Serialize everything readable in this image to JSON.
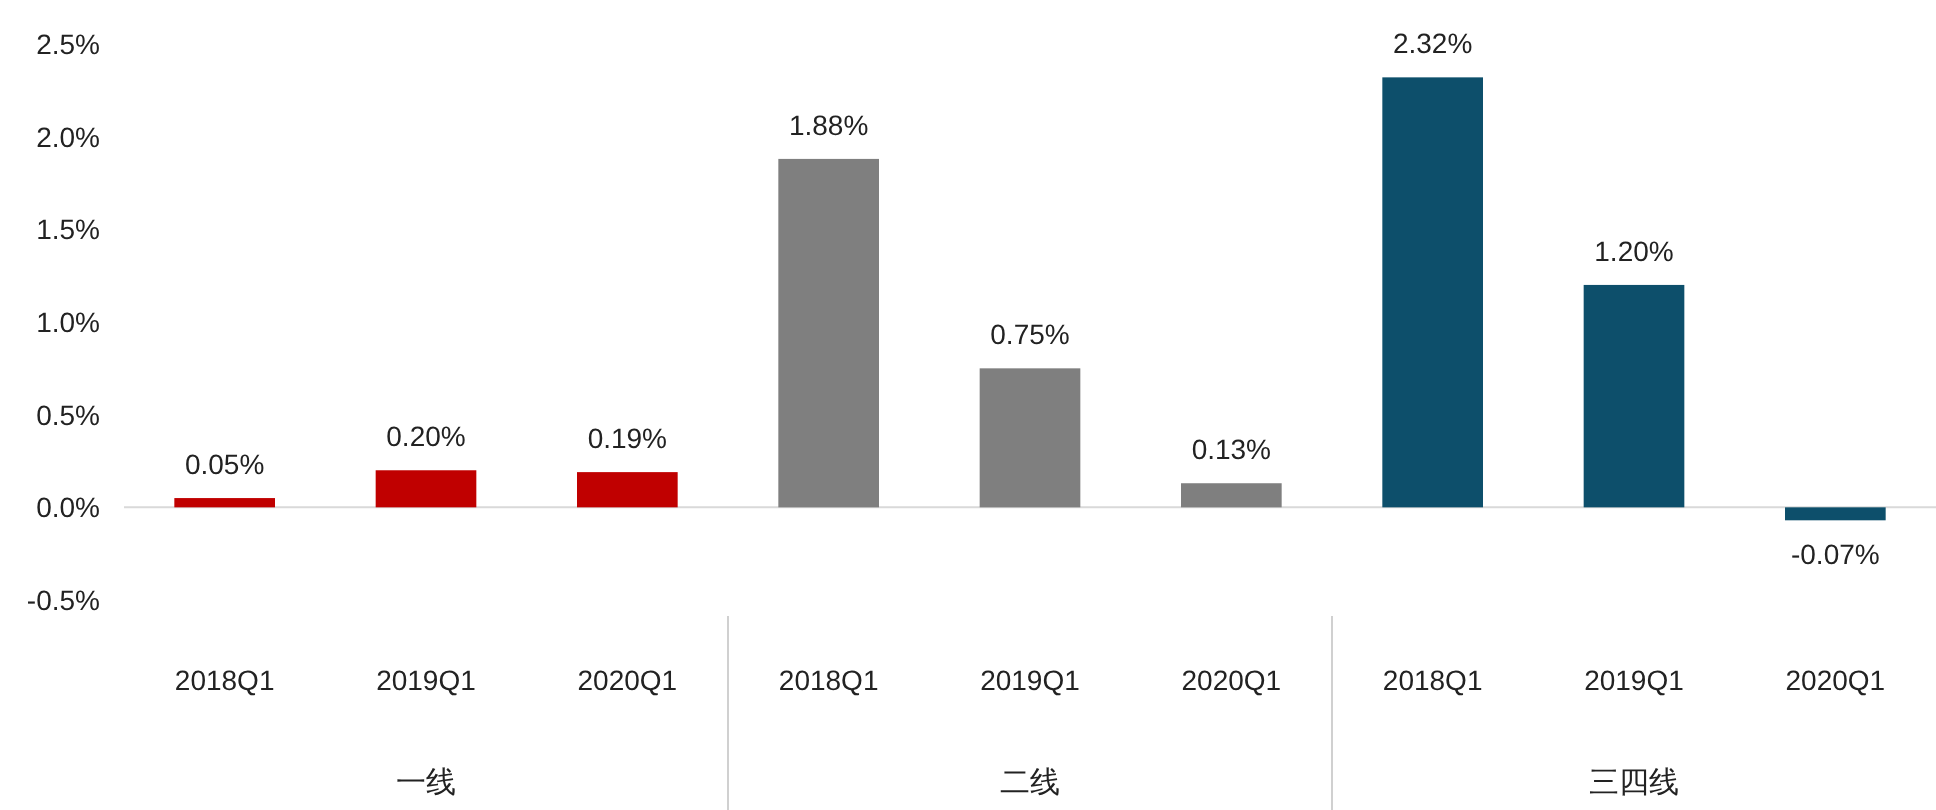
{
  "chart_data": {
    "type": "bar",
    "categories": [
      "2018Q1",
      "2019Q1",
      "2020Q1",
      "2018Q1",
      "2019Q1",
      "2020Q1",
      "2018Q1",
      "2019Q1",
      "2020Q1"
    ],
    "values": [
      0.05,
      0.2,
      0.19,
      1.88,
      0.75,
      0.13,
      2.32,
      1.2,
      -0.07
    ],
    "colors": [
      "#c00000",
      "#c00000",
      "#c00000",
      "#7f7f7f",
      "#7f7f7f",
      "#7f7f7f",
      "#0d4f6b",
      "#0d4f6b",
      "#0d4f6b"
    ],
    "value_labels": [
      "0.05%",
      "0.20%",
      "0.19%",
      "1.88%",
      "0.75%",
      "0.13%",
      "2.32%",
      "1.20%",
      "-0.07%"
    ],
    "annotations": [
      "一线",
      "二线",
      "三四线"
    ],
    "ylim": [
      -0.5,
      2.5
    ],
    "yticks": [
      {
        "value": -0.5,
        "label": "-0.5%"
      },
      {
        "value": 0,
        "label": "0.0%"
      },
      {
        "value": 0.5,
        "label": "0.5%"
      },
      {
        "value": 1,
        "label": "1.0%"
      },
      {
        "value": 1.5,
        "label": "1.5%"
      },
      {
        "value": 2,
        "label": "2.0%"
      },
      {
        "value": 2.5,
        "label": "2.5%"
      }
    ]
  }
}
